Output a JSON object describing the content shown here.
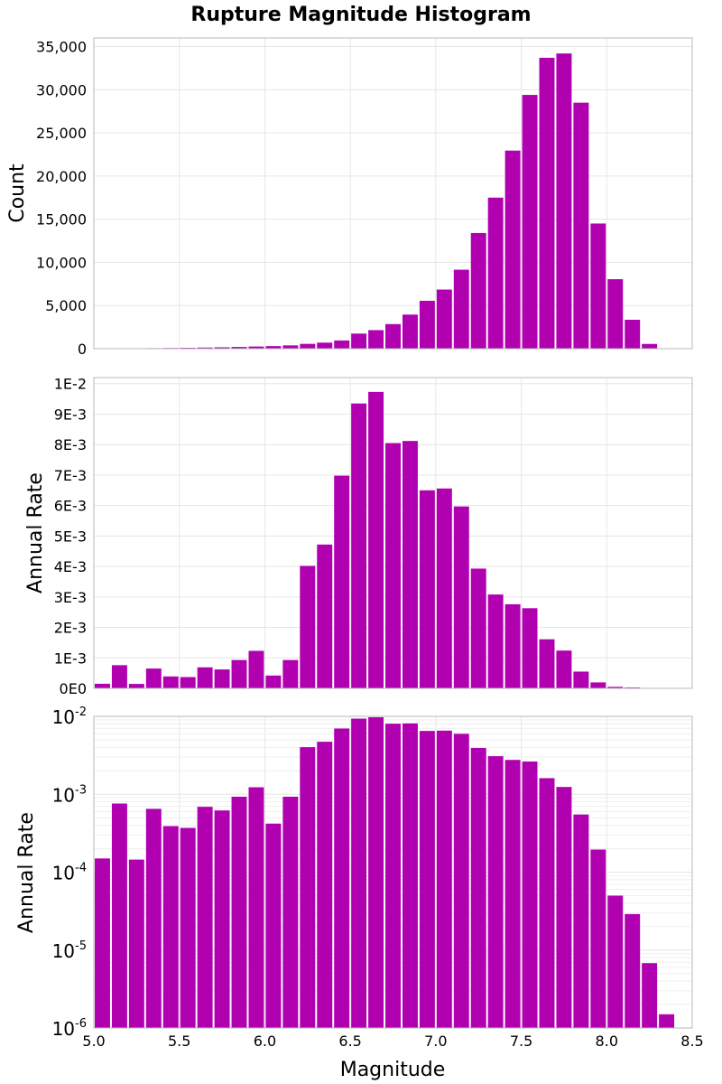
{
  "chart_data": [
    {
      "type": "bar",
      "title": "Rupture Magnitude Histogram",
      "ylabel": "Count",
      "xlim": [
        5.0,
        8.5
      ],
      "ylim": [
        0,
        36000
      ],
      "yscale": "linear",
      "bin_width": 0.1,
      "x": [
        5.05,
        5.15,
        5.25,
        5.35,
        5.45,
        5.55,
        5.65,
        5.75,
        5.85,
        5.95,
        6.05,
        6.15,
        6.25,
        6.35,
        6.45,
        6.55,
        6.65,
        6.75,
        6.85,
        6.95,
        7.05,
        7.15,
        7.25,
        7.35,
        7.45,
        7.55,
        7.65,
        7.75,
        7.85,
        7.95,
        8.05,
        8.15,
        8.25,
        8.35
      ],
      "values": [
        30,
        40,
        50,
        60,
        80,
        100,
        130,
        160,
        200,
        250,
        300,
        380,
        560,
        700,
        950,
        1750,
        2150,
        2850,
        3950,
        5550,
        6850,
        9150,
        13400,
        17500,
        22950,
        29400,
        33700,
        34200,
        28500,
        14500,
        8050,
        3350,
        550,
        50
      ],
      "ytick_labels": [
        "0",
        "5,000",
        "10,000",
        "15,000",
        "20,000",
        "25,000",
        "30,000",
        "35,000"
      ],
      "ytick_values": [
        0,
        5000,
        10000,
        15000,
        20000,
        25000,
        30000,
        35000
      ],
      "grid": true
    },
    {
      "type": "bar",
      "ylabel": "Annual Rate",
      "xlim": [
        5.0,
        8.5
      ],
      "ylim": [
        0,
        0.0102
      ],
      "yscale": "linear",
      "bin_width": 0.1,
      "x": [
        5.05,
        5.15,
        5.25,
        5.35,
        5.45,
        5.55,
        5.65,
        5.75,
        5.85,
        5.95,
        6.05,
        6.15,
        6.25,
        6.35,
        6.45,
        6.55,
        6.65,
        6.75,
        6.85,
        6.95,
        7.05,
        7.15,
        7.25,
        7.35,
        7.45,
        7.55,
        7.65,
        7.75,
        7.85,
        7.95,
        8.05,
        8.15,
        8.25,
        8.35
      ],
      "values": [
        0.00015,
        0.00076,
        0.000145,
        0.00065,
        0.00039,
        0.00037,
        0.00069,
        0.00062,
        0.00093,
        0.00123,
        0.00042,
        0.00093,
        0.00402,
        0.00472,
        0.00698,
        0.00935,
        0.00973,
        0.00805,
        0.00812,
        0.0065,
        0.00656,
        0.00597,
        0.00393,
        0.00308,
        0.00276,
        0.00263,
        0.00161,
        0.00124,
        0.00055,
        0.000195,
        5e-05,
        2.9e-05,
        6.8e-06,
        1.5e-06
      ],
      "ytick_labels": [
        "0E0",
        "1E-3",
        "2E-3",
        "3E-3",
        "4E-3",
        "5E-3",
        "6E-3",
        "7E-3",
        "8E-3",
        "9E-3",
        "1E-2"
      ],
      "ytick_values": [
        0,
        0.001,
        0.002,
        0.003,
        0.004,
        0.005,
        0.006,
        0.007,
        0.008,
        0.009,
        0.01
      ],
      "grid": true
    },
    {
      "type": "bar",
      "ylabel": "Annual Rate",
      "xlabel": "Magnitude",
      "xlim": [
        5.0,
        8.5
      ],
      "ylim_log10": [
        -6,
        -2
      ],
      "yscale": "log",
      "bin_width": 0.1,
      "x": [
        5.05,
        5.15,
        5.25,
        5.35,
        5.45,
        5.55,
        5.65,
        5.75,
        5.85,
        5.95,
        6.05,
        6.15,
        6.25,
        6.35,
        6.45,
        6.55,
        6.65,
        6.75,
        6.85,
        6.95,
        7.05,
        7.15,
        7.25,
        7.35,
        7.45,
        7.55,
        7.65,
        7.75,
        7.85,
        7.95,
        8.05,
        8.15,
        8.25,
        8.35
      ],
      "values": [
        0.00015,
        0.00076,
        0.000145,
        0.00065,
        0.00039,
        0.00037,
        0.00069,
        0.00062,
        0.00093,
        0.00123,
        0.00042,
        0.00093,
        0.00402,
        0.00472,
        0.00698,
        0.00935,
        0.00973,
        0.00805,
        0.00812,
        0.0065,
        0.00656,
        0.00597,
        0.00393,
        0.00308,
        0.00276,
        0.00263,
        0.00161,
        0.00124,
        0.00055,
        0.000195,
        5e-05,
        2.9e-05,
        6.8e-06,
        1.5e-06
      ],
      "ytick_base": "10",
      "ytick_exponents": [
        "-6",
        "-5",
        "-4",
        "-3",
        "-2"
      ],
      "xtick_labels": [
        "5.0",
        "5.5",
        "6.0",
        "6.5",
        "7.0",
        "7.5",
        "8.0",
        "8.5"
      ],
      "xtick_values": [
        5.0,
        5.5,
        6.0,
        6.5,
        7.0,
        7.5,
        8.0,
        8.5
      ],
      "grid": true
    }
  ],
  "colors": {
    "bar": "#b000b0",
    "grid": "#e6e6e6",
    "frame": "#b8b8b8"
  }
}
